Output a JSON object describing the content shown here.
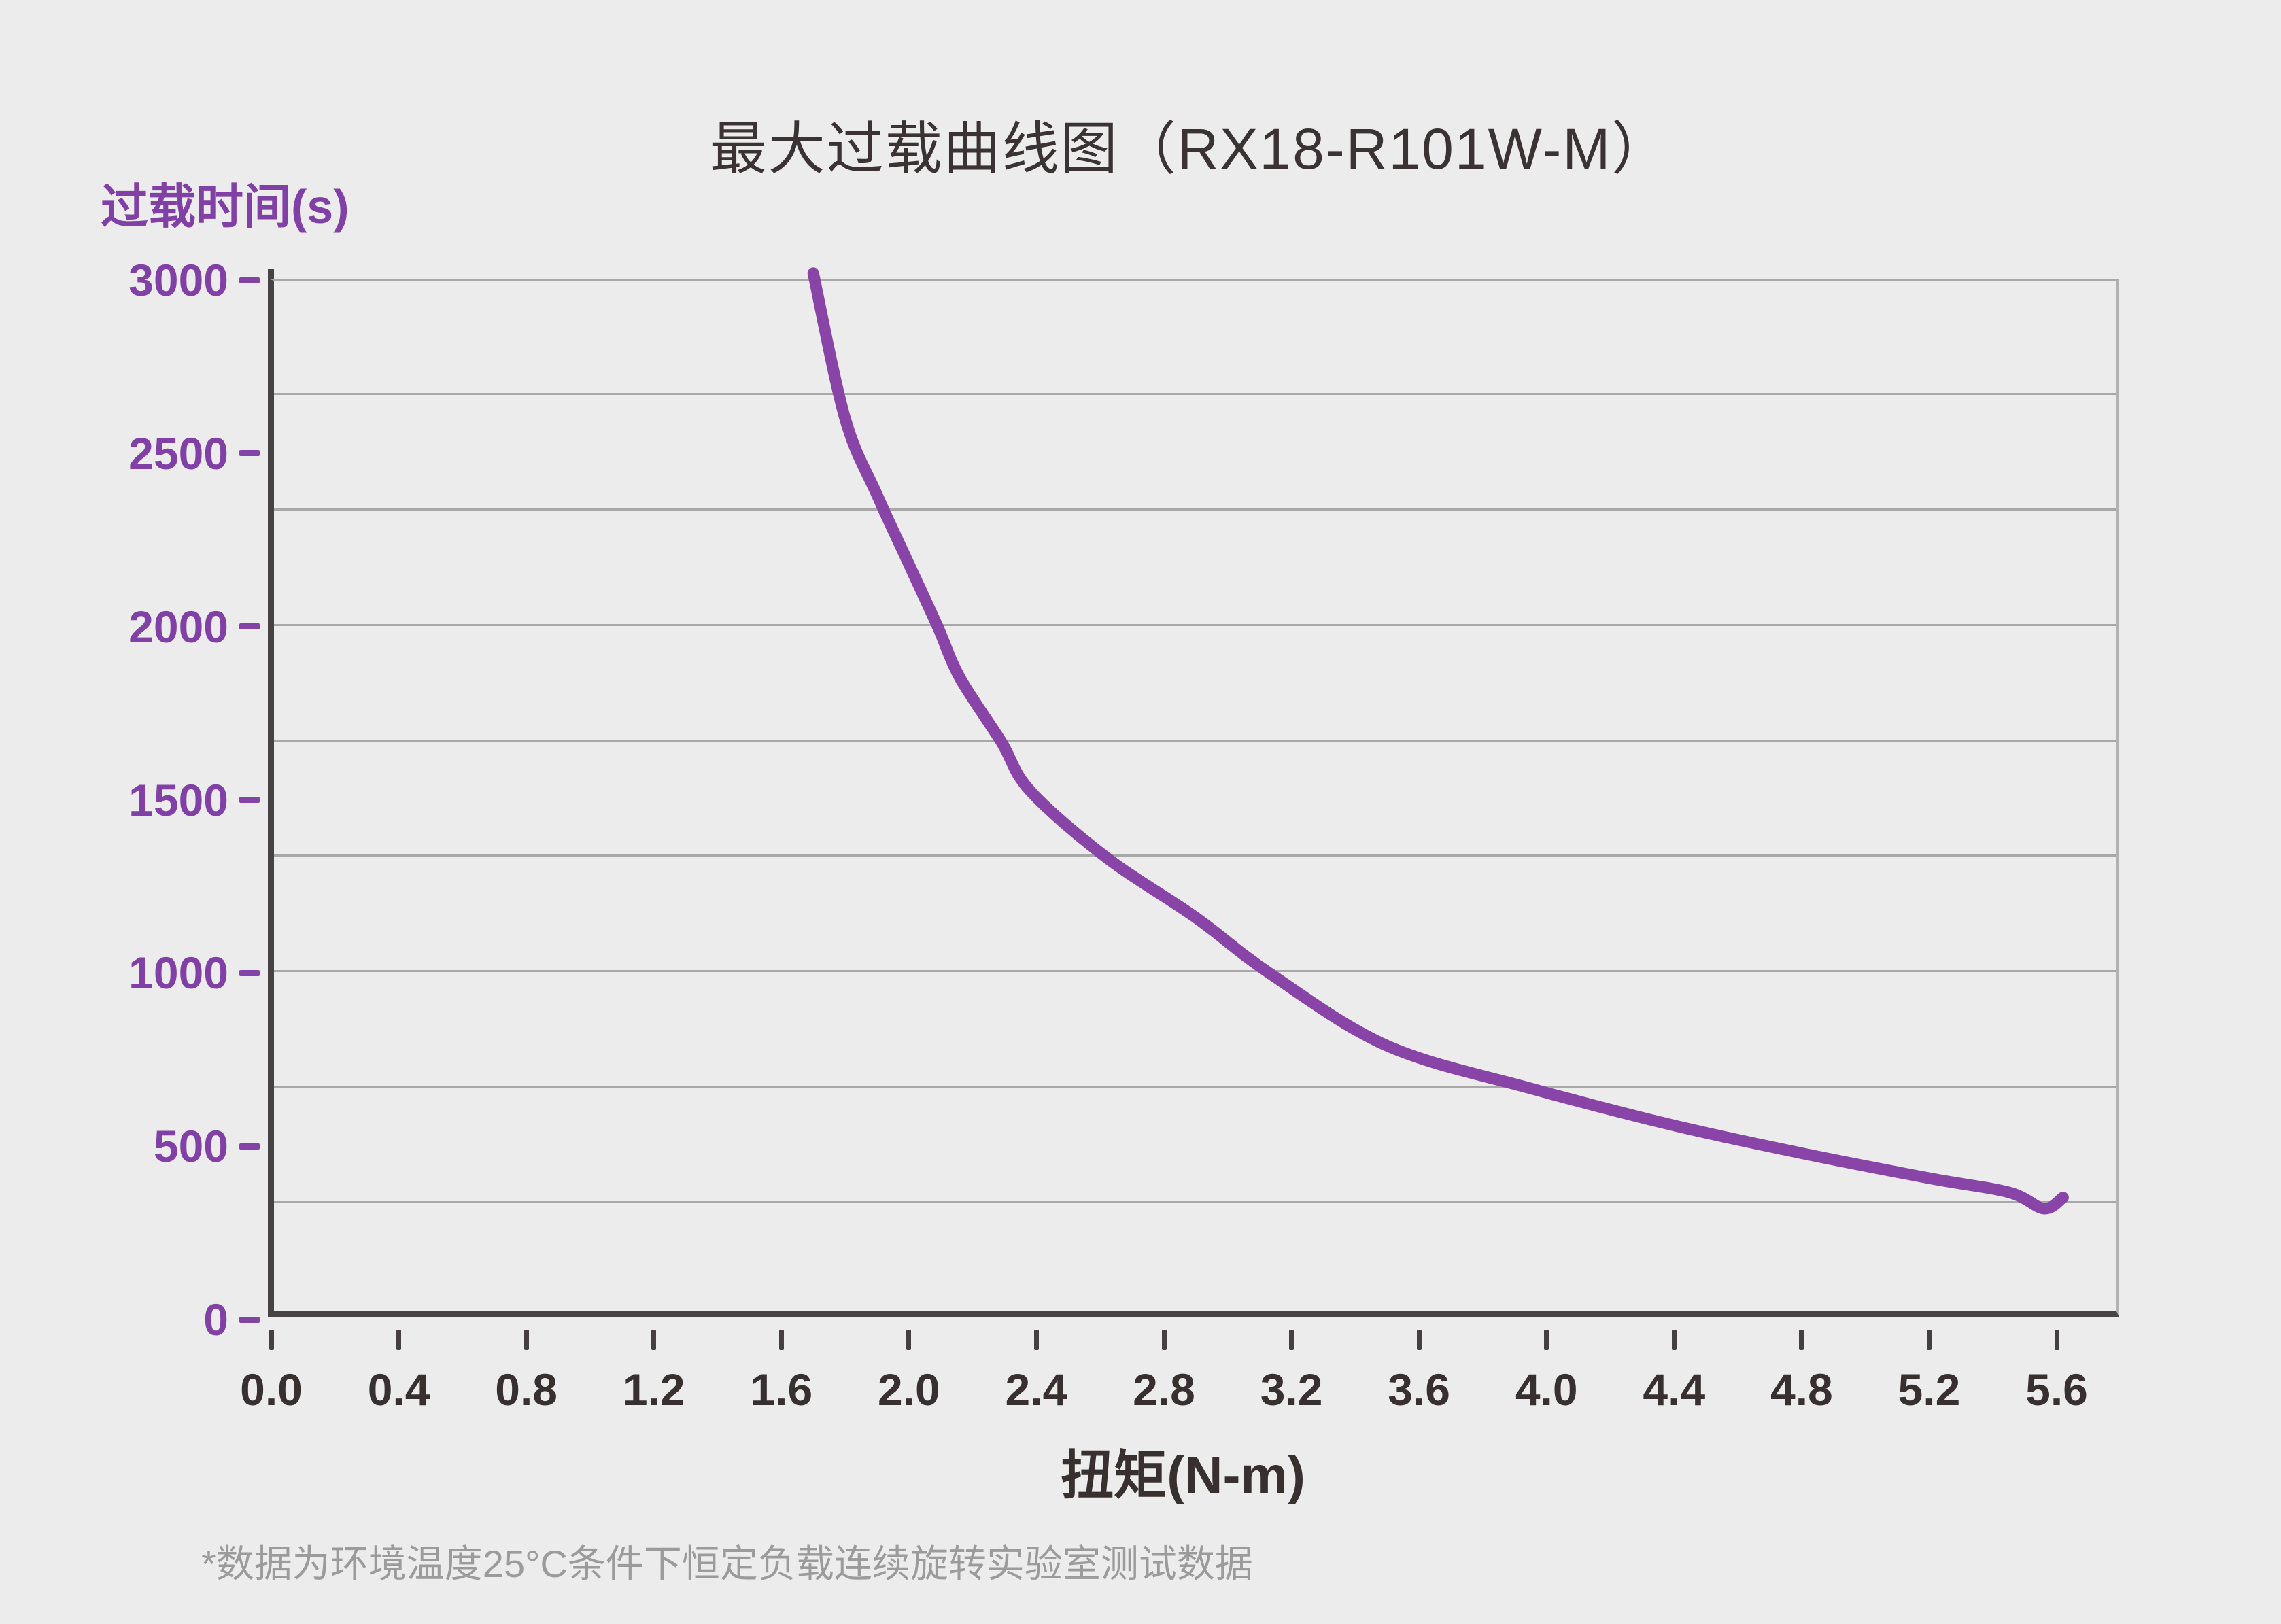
{
  "title": "最大过载曲线图（RX18-R101W-M）",
  "y_axis": {
    "title": "过载时间(s)",
    "ticks": [
      "3000",
      "2500",
      "2000",
      "1500",
      "1000",
      "500",
      "0"
    ]
  },
  "x_axis": {
    "title": "扭矩(N-m)",
    "ticks": [
      "0.0",
      "0.4",
      "0.8",
      "1.2",
      "1.6",
      "2.0",
      "2.4",
      "2.8",
      "3.2",
      "3.6",
      "4.0",
      "4.4",
      "4.8",
      "5.2",
      "5.6"
    ]
  },
  "footnote": "*数据为环境温度25°C条件下恒定负载连续旋转实验室测试数据",
  "colors": {
    "background": "#edecec",
    "curve_purple": "#8944a8",
    "text_purple": "#8140a5",
    "axis_dark": "#474243",
    "tick_dark": "#453f40",
    "text_dark": "#37302f",
    "gridline_gray": "#a8a8a8",
    "right_border_gray": "#b3b2b2",
    "footnote_gray": "#9c9b9b"
  },
  "chart_data": {
    "type": "line",
    "title": "最大过载曲线图（RX18-R101W-M）",
    "xlabel": "扭矩(N-m)",
    "ylabel": "过载时间(s)",
    "xlim": [
      0,
      5.8
    ],
    "ylim": [
      0,
      3000
    ],
    "x_tick_step": 0.4,
    "y_tick_step": 500,
    "grid": {
      "horizontal_divisions": 9,
      "vertical_gridlines": false
    },
    "legend": "none",
    "series": [
      {
        "color": "#8944a8",
        "points": [
          [
            1.7,
            3020
          ],
          [
            1.8,
            2600
          ],
          [
            1.9,
            2380
          ],
          [
            2.0,
            2180
          ],
          [
            2.09,
            2000
          ],
          [
            2.16,
            1852
          ],
          [
            2.29,
            1667
          ],
          [
            2.38,
            1526
          ],
          [
            2.62,
            1333
          ],
          [
            2.9,
            1160
          ],
          [
            3.13,
            1000
          ],
          [
            3.5,
            790
          ],
          [
            3.95,
            667
          ],
          [
            4.4,
            560
          ],
          [
            4.8,
            480
          ],
          [
            5.2,
            408
          ],
          [
            5.45,
            367
          ],
          [
            5.56,
            320
          ],
          [
            5.62,
            352
          ]
        ]
      }
    ]
  }
}
